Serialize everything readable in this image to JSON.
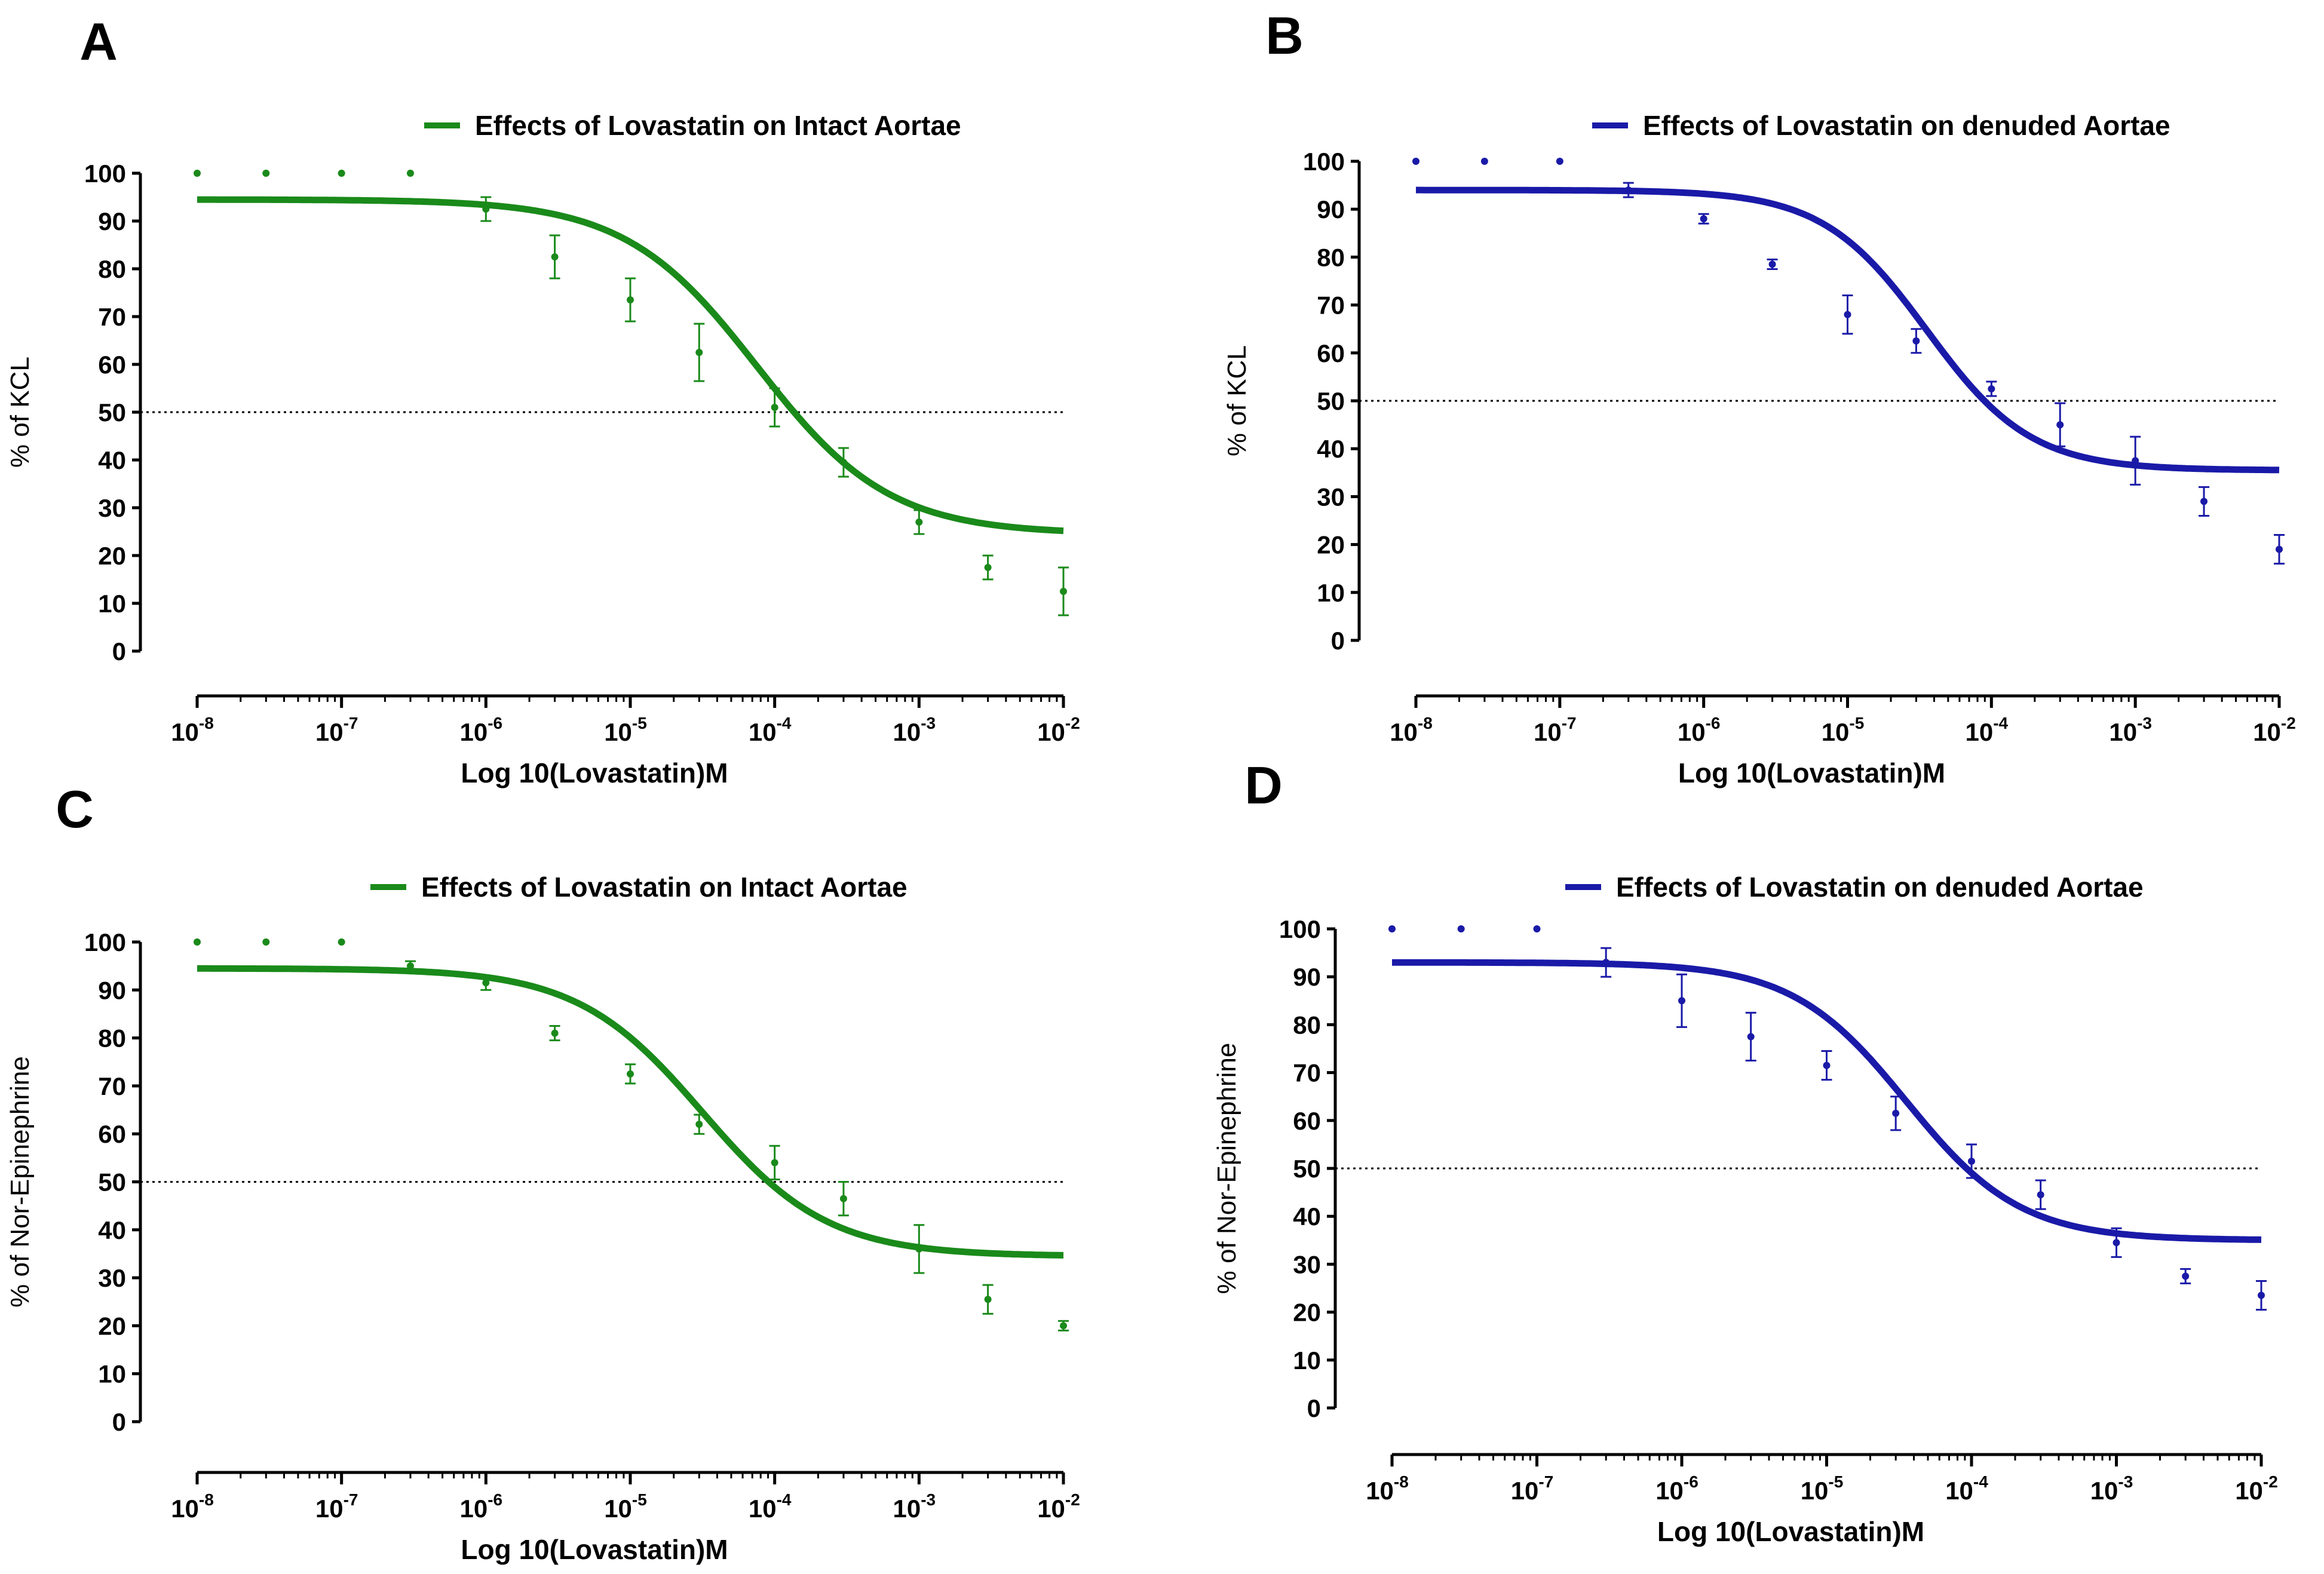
{
  "chart_data": [
    {
      "panel": "A",
      "type": "scatter",
      "color": "#1a8a1a",
      "legend": "Effects of Lovastatin on Intact Aortae",
      "xlabel": "Log 10(Lovastatin)M",
      "ylabel": "% of KCL",
      "ylim": [
        0,
        100
      ],
      "yticks": [
        "0",
        "10",
        "20",
        "30",
        "40",
        "50",
        "60",
        "70",
        "80",
        "90",
        "100"
      ],
      "xticks": [
        {
          "base": "10",
          "exp": "-8"
        },
        {
          "base": "10",
          "exp": "-7"
        },
        {
          "base": "10",
          "exp": "-6"
        },
        {
          "base": "10",
          "exp": "-5"
        },
        {
          "base": "10",
          "exp": "-4"
        },
        {
          "base": "10",
          "exp": "-3"
        },
        {
          "base": "10",
          "exp": "-2"
        }
      ],
      "xlim_log10": [
        -8,
        -2
      ],
      "reference_line": 50,
      "points": [
        {
          "logx": -8,
          "y": 100,
          "err": 0
        },
        {
          "logx": -7.523,
          "y": 100,
          "err": 0
        },
        {
          "logx": -7,
          "y": 100,
          "err": 0
        },
        {
          "logx": -6.523,
          "y": 100,
          "err": 0
        },
        {
          "logx": -6,
          "y": 92.5,
          "err": 2.5
        },
        {
          "logx": -5.523,
          "y": 82.5,
          "err": 4.5
        },
        {
          "logx": -5,
          "y": 73.5,
          "err": 4.5
        },
        {
          "logx": -4.523,
          "y": 62.5,
          "err": 6
        },
        {
          "logx": -4,
          "y": 51,
          "err": 4
        },
        {
          "logx": -3.523,
          "y": 39.5,
          "err": 3
        },
        {
          "logx": -3,
          "y": 27,
          "err": 2.5
        },
        {
          "logx": -2.523,
          "y": 17.5,
          "err": 2.5
        },
        {
          "logx": -2,
          "y": 12.5,
          "err": 5
        }
      ],
      "fit": {
        "top": 94.5,
        "bottom": 24.5,
        "log_ic50": -4.12,
        "hill": -0.95
      }
    },
    {
      "panel": "B",
      "type": "scatter",
      "color": "#1a1aa8",
      "legend": "Effects of Lovastatin on denuded Aortae",
      "xlabel": "Log 10(Lovastatin)M",
      "ylabel": "% of KCL",
      "ylim": [
        0,
        100
      ],
      "yticks": [
        "0",
        "10",
        "20",
        "30",
        "40",
        "50",
        "60",
        "70",
        "80",
        "90",
        "100"
      ],
      "xticks": [
        {
          "base": "10",
          "exp": "-8"
        },
        {
          "base": "10",
          "exp": "-7"
        },
        {
          "base": "10",
          "exp": "-6"
        },
        {
          "base": "10",
          "exp": "-5"
        },
        {
          "base": "10",
          "exp": "-4"
        },
        {
          "base": "10",
          "exp": "-3"
        },
        {
          "base": "10",
          "exp": "-2"
        }
      ],
      "xlim_log10": [
        -8,
        -2
      ],
      "reference_line": 50,
      "points": [
        {
          "logx": -8,
          "y": 100,
          "err": 0
        },
        {
          "logx": -7.523,
          "y": 100,
          "err": 0
        },
        {
          "logx": -7,
          "y": 100,
          "err": 0
        },
        {
          "logx": -6.523,
          "y": 94,
          "err": 1.5
        },
        {
          "logx": -6,
          "y": 88,
          "err": 1
        },
        {
          "logx": -5.523,
          "y": 78.5,
          "err": 1
        },
        {
          "logx": -5,
          "y": 68,
          "err": 4
        },
        {
          "logx": -4.523,
          "y": 62.5,
          "err": 2.5
        },
        {
          "logx": -4,
          "y": 52.5,
          "err": 1.5
        },
        {
          "logx": -3.523,
          "y": 45,
          "err": 4.5
        },
        {
          "logx": -3,
          "y": 37.5,
          "err": 5
        },
        {
          "logx": -2.523,
          "y": 29,
          "err": 3
        },
        {
          "logx": -2,
          "y": 19,
          "err": 3
        }
      ],
      "fit": {
        "top": 94,
        "bottom": 35.5,
        "log_ic50": -4.45,
        "hill": -1.2
      }
    },
    {
      "panel": "C",
      "type": "scatter",
      "color": "#1a8a1a",
      "legend": "Effects of Lovastatin on Intact Aortae",
      "xlabel": "Log 10(Lovastatin)M",
      "ylabel": "% of Nor-Epinephrine",
      "ylim": [
        0,
        100
      ],
      "yticks": [
        "0",
        "10",
        "20",
        "30",
        "40",
        "50",
        "60",
        "70",
        "80",
        "90",
        "100"
      ],
      "xticks": [
        {
          "base": "10",
          "exp": "-8"
        },
        {
          "base": "10",
          "exp": "-7"
        },
        {
          "base": "10",
          "exp": "-6"
        },
        {
          "base": "10",
          "exp": "-5"
        },
        {
          "base": "10",
          "exp": "-4"
        },
        {
          "base": "10",
          "exp": "-3"
        },
        {
          "base": "10",
          "exp": "-2"
        }
      ],
      "xlim_log10": [
        -8,
        -2
      ],
      "reference_line": 50,
      "points": [
        {
          "logx": -8,
          "y": 100,
          "err": 0
        },
        {
          "logx": -7.523,
          "y": 100,
          "err": 0
        },
        {
          "logx": -7,
          "y": 100,
          "err": 0
        },
        {
          "logx": -6.523,
          "y": 95,
          "err": 1
        },
        {
          "logx": -6,
          "y": 91.5,
          "err": 1.5
        },
        {
          "logx": -5.523,
          "y": 81,
          "err": 1.5
        },
        {
          "logx": -5,
          "y": 72.5,
          "err": 2
        },
        {
          "logx": -4.523,
          "y": 62,
          "err": 2
        },
        {
          "logx": -4,
          "y": 54,
          "err": 3.5
        },
        {
          "logx": -3.523,
          "y": 46.5,
          "err": 3.5
        },
        {
          "logx": -3,
          "y": 36,
          "err": 5
        },
        {
          "logx": -2.523,
          "y": 25.5,
          "err": 3
        },
        {
          "logx": -2,
          "y": 20,
          "err": 1
        }
      ],
      "fit": {
        "top": 94.5,
        "bottom": 34.5,
        "log_ic50": -4.5,
        "hill": -1.0
      }
    },
    {
      "panel": "D",
      "type": "scatter",
      "color": "#1a1aa8",
      "legend": "Effects of Lovastatin on denuded Aortae",
      "xlabel": "Log 10(Lovastatin)M",
      "ylabel": "% of Nor-Epinephrine",
      "ylim": [
        0,
        100
      ],
      "yticks": [
        "0",
        "10",
        "20",
        "30",
        "40",
        "50",
        "60",
        "70",
        "80",
        "90",
        "100"
      ],
      "xticks": [
        {
          "base": "10",
          "exp": "-8"
        },
        {
          "base": "10",
          "exp": "-7"
        },
        {
          "base": "10",
          "exp": "-6"
        },
        {
          "base": "10",
          "exp": "-5"
        },
        {
          "base": "10",
          "exp": "-4"
        },
        {
          "base": "10",
          "exp": "-3"
        },
        {
          "base": "10",
          "exp": "-2"
        }
      ],
      "xlim_log10": [
        -8,
        -2
      ],
      "reference_line": 50,
      "points": [
        {
          "logx": -8,
          "y": 100,
          "err": 0
        },
        {
          "logx": -7.523,
          "y": 100,
          "err": 0
        },
        {
          "logx": -7,
          "y": 100,
          "err": 0
        },
        {
          "logx": -6.523,
          "y": 93,
          "err": 3
        },
        {
          "logx": -6,
          "y": 85,
          "err": 5.5
        },
        {
          "logx": -5.523,
          "y": 77.5,
          "err": 5
        },
        {
          "logx": -5,
          "y": 71.5,
          "err": 3
        },
        {
          "logx": -4.523,
          "y": 61.5,
          "err": 3.5
        },
        {
          "logx": -4,
          "y": 51.5,
          "err": 3.5
        },
        {
          "logx": -3.523,
          "y": 44.5,
          "err": 3
        },
        {
          "logx": -3,
          "y": 34.5,
          "err": 3
        },
        {
          "logx": -2.523,
          "y": 27.5,
          "err": 1.5
        },
        {
          "logx": -2,
          "y": 23.5,
          "err": 3
        }
      ],
      "fit": {
        "top": 93,
        "bottom": 35,
        "log_ic50": -4.45,
        "hill": -1.1
      }
    }
  ]
}
